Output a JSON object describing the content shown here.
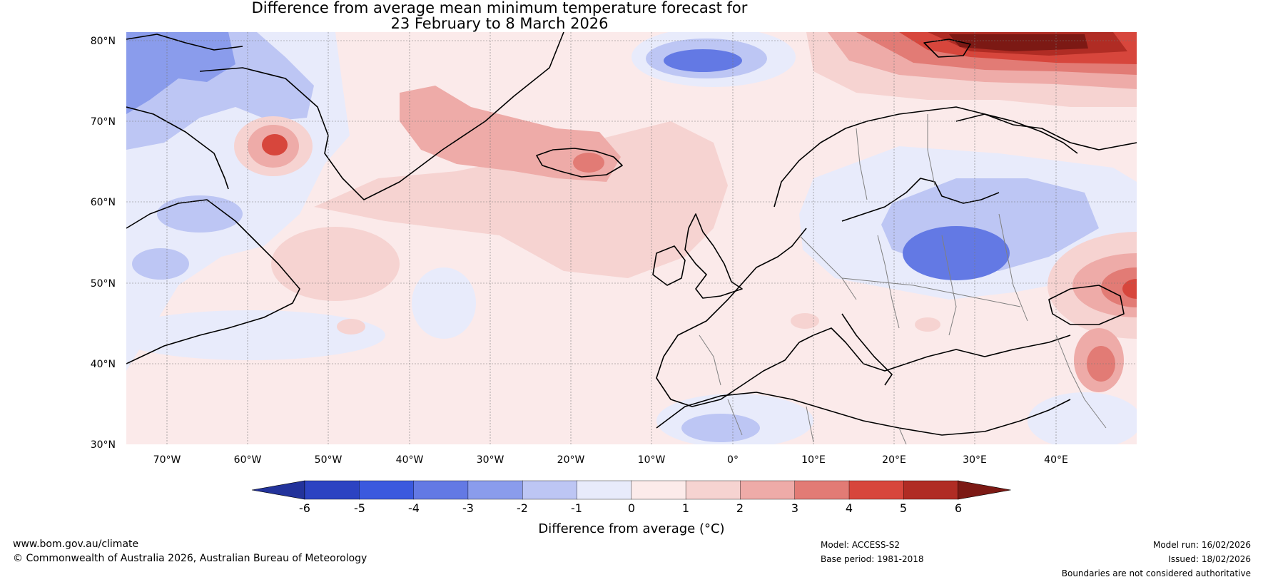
{
  "title": {
    "line1": "Difference from average mean minimum temperature forecast for",
    "line2": "23 February to 8 March 2026"
  },
  "map": {
    "lat_labels": [
      "80°N",
      "70°N",
      "60°N",
      "50°N",
      "40°N",
      "30°N"
    ],
    "lon_labels": [
      "70°W",
      "60°W",
      "50°W",
      "40°W",
      "30°W",
      "20°W",
      "10°W",
      "0°",
      "10°E",
      "20°E",
      "30°E",
      "40°E"
    ],
    "extent": {
      "lon_min": -75,
      "lon_max": 50,
      "lat_min": 30,
      "lat_max": 81
    },
    "background_anomaly_color": "#fbeaea"
  },
  "colorbar": {
    "label": "Difference from average (°C)",
    "ticks": [
      "-6",
      "-5",
      "-4",
      "-3",
      "-2",
      "-1",
      "0",
      "1",
      "2",
      "3",
      "4",
      "5",
      "6"
    ],
    "colors": [
      "#23339b",
      "#2c43c2",
      "#3b59de",
      "#6379e4",
      "#8a9cec",
      "#bdc6f4",
      "#e8ebfb",
      "#fcebea",
      "#f6d3d1",
      "#eeaba8",
      "#e27b75",
      "#d7463c",
      "#b02c24",
      "#7c1914"
    ]
  },
  "footer": {
    "website": "www.bom.gov.au/climate",
    "copyright": "© Commonwealth of Australia 2026, Australian Bureau of Meteorology",
    "model": "Model: ACCESS-S2",
    "base_period": "Base period: 1981-2018",
    "model_run": "Model run: 16/02/2026",
    "issued": "Issued: 18/02/2026",
    "disclaimer": "Boundaries are not considered authoritative"
  }
}
